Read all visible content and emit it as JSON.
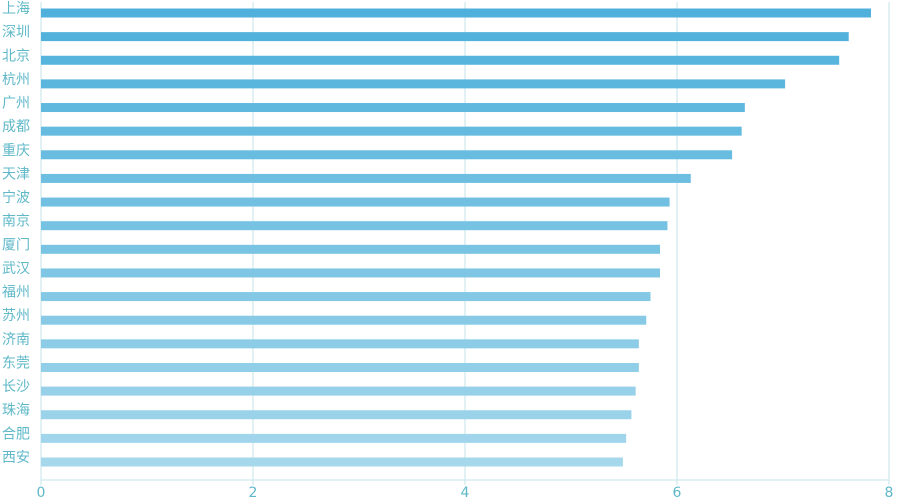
{
  "chart_data": {
    "type": "hbar",
    "categories": [
      "上海",
      "深圳",
      "北京",
      "杭州",
      "广州",
      "成都",
      "重庆",
      "天津",
      "宁波",
      "南京",
      "厦门",
      "武汉",
      "福州",
      "苏州",
      "济南",
      "东莞",
      "长沙",
      "珠海",
      "合肥",
      "西安"
    ],
    "values": [
      7.83,
      7.62,
      7.53,
      7.02,
      6.64,
      6.61,
      6.52,
      6.13,
      5.93,
      5.91,
      5.84,
      5.84,
      5.75,
      5.71,
      5.64,
      5.64,
      5.61,
      5.57,
      5.52,
      5.49
    ],
    "colors": [
      "#4fb0dc",
      "#53b2dc",
      "#57b4dd",
      "#5bb6de",
      "#60b8df",
      "#64badf",
      "#68bce0",
      "#6dbee1",
      "#71c0e2",
      "#76c2e3",
      "#7ac4e3",
      "#7fc6e4",
      "#83c8e5",
      "#88cae6",
      "#8ccce7",
      "#91cee8",
      "#96d0e9",
      "#9ad2ea",
      "#a0d5eb",
      "#a6d8ec"
    ],
    "xlim": [
      0,
      8
    ],
    "xticks": [
      0,
      2,
      4,
      6,
      8
    ],
    "grid": true
  }
}
